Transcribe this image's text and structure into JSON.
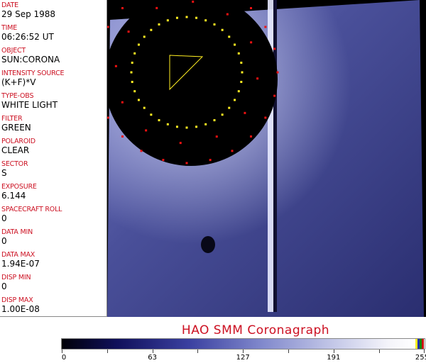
{
  "fields": [
    {
      "label": "DATE",
      "value": "29 Sep 1988"
    },
    {
      "label": "TIME",
      "value": "06:26:52 UT"
    },
    {
      "label": "OBJECT",
      "value": "SUN:CORONA"
    },
    {
      "label": "INTENSITY SOURCE",
      "value": "(K+F)*V"
    },
    {
      "label": "TYPE-OBS",
      "value": "WHITE LIGHT"
    },
    {
      "label": "FILTER",
      "value": "GREEN"
    },
    {
      "label": "POLAROID",
      "value": "CLEAR"
    },
    {
      "label": "SECTOR",
      "value": "S"
    },
    {
      "label": "EXPOSURE",
      "value": "6.144"
    },
    {
      "label": "SPACECRAFT ROLL",
      "value": "0"
    },
    {
      "label": "DATA MIN",
      "value": "0"
    },
    {
      "label": "DATA MAX",
      "value": "1.94E-07"
    },
    {
      "label": "DISP MIN",
      "value": "0"
    },
    {
      "label": "DISP MAX",
      "value": "1.00E-08"
    }
  ],
  "title": "HAO   SMM  Coronagraph",
  "colorbar": {
    "ticks": [
      "0",
      "63",
      "127",
      "191",
      "255"
    ],
    "min": 0,
    "max": 255
  },
  "colors": {
    "label": "#cc1122",
    "overlay_yellow": "#ffee22",
    "overlay_red": "#ee1111"
  }
}
